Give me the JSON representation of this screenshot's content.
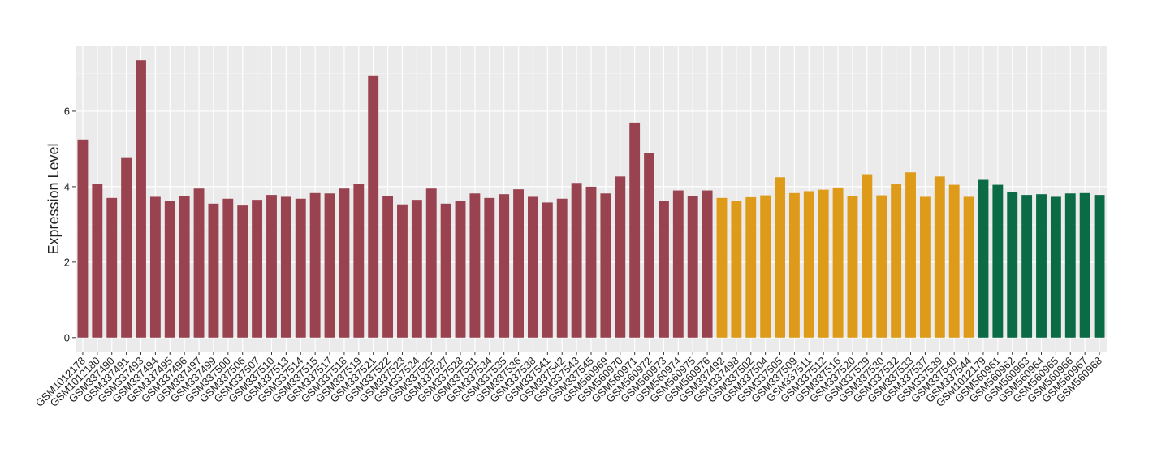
{
  "chart_data": {
    "type": "bar",
    "y_label": "Expression Level",
    "categories": [
      "GSM1012178",
      "GSM1012180",
      "GSM337490",
      "GSM337491",
      "GSM337493",
      "GSM337494",
      "GSM337495",
      "GSM337496",
      "GSM337497",
      "GSM337499",
      "GSM337500",
      "GSM337506",
      "GSM337507",
      "GSM337510",
      "GSM337513",
      "GSM337514",
      "GSM337515",
      "GSM337517",
      "GSM337518",
      "GSM337519",
      "GSM337521",
      "GSM337522",
      "GSM337523",
      "GSM337524",
      "GSM337525",
      "GSM337527",
      "GSM337528",
      "GSM337531",
      "GSM337534",
      "GSM337535",
      "GSM337536",
      "GSM337538",
      "GSM337541",
      "GSM337542",
      "GSM337543",
      "GSM337545",
      "GSM560969",
      "GSM560970",
      "GSM560971",
      "GSM560972",
      "GSM560973",
      "GSM560974",
      "GSM560975",
      "GSM560976",
      "GSM337492",
      "GSM337498",
      "GSM337502",
      "GSM337504",
      "GSM337505",
      "GSM337509",
      "GSM337511",
      "GSM337512",
      "GSM337516",
      "GSM337520",
      "GSM337529",
      "GSM337530",
      "GSM337532",
      "GSM337533",
      "GSM337537",
      "GSM337539",
      "GSM337540",
      "GSM337544",
      "GSM1012179",
      "GSM560961",
      "GSM560962",
      "GSM560963",
      "GSM560964",
      "GSM560965",
      "GSM560966",
      "GSM560967",
      "GSM560968"
    ],
    "values": [
      5.25,
      4.08,
      3.7,
      4.78,
      7.35,
      3.73,
      3.62,
      3.75,
      3.95,
      3.55,
      3.68,
      3.5,
      3.65,
      3.78,
      3.73,
      3.68,
      3.83,
      3.82,
      3.95,
      4.08,
      6.95,
      3.75,
      3.53,
      3.65,
      3.95,
      3.55,
      3.62,
      3.82,
      3.7,
      3.8,
      3.93,
      3.73,
      3.58,
      3.68,
      4.1,
      4.0,
      3.82,
      4.27,
      5.7,
      4.88,
      3.62,
      3.9,
      3.75,
      3.9,
      3.7,
      3.62,
      3.72,
      3.77,
      4.25,
      3.83,
      3.88,
      3.92,
      3.98,
      3.75,
      4.33,
      3.77,
      4.07,
      4.38,
      3.73,
      4.27,
      4.05,
      3.73,
      4.18,
      4.05,
      3.85,
      3.78,
      3.8,
      3.73,
      3.82,
      3.83,
      3.78
    ],
    "colors": [
      "#9a4350",
      "#9a4350",
      "#9a4350",
      "#9a4350",
      "#9a4350",
      "#9a4350",
      "#9a4350",
      "#9a4350",
      "#9a4350",
      "#9a4350",
      "#9a4350",
      "#9a4350",
      "#9a4350",
      "#9a4350",
      "#9a4350",
      "#9a4350",
      "#9a4350",
      "#9a4350",
      "#9a4350",
      "#9a4350",
      "#9a4350",
      "#9a4350",
      "#9a4350",
      "#9a4350",
      "#9a4350",
      "#9a4350",
      "#9a4350",
      "#9a4350",
      "#9a4350",
      "#9a4350",
      "#9a4350",
      "#9a4350",
      "#9a4350",
      "#9a4350",
      "#9a4350",
      "#9a4350",
      "#9a4350",
      "#9a4350",
      "#9a4350",
      "#9a4350",
      "#9a4350",
      "#9a4350",
      "#9a4350",
      "#9a4350",
      "#de9b1a",
      "#de9b1a",
      "#de9b1a",
      "#de9b1a",
      "#de9b1a",
      "#de9b1a",
      "#de9b1a",
      "#de9b1a",
      "#de9b1a",
      "#de9b1a",
      "#de9b1a",
      "#de9b1a",
      "#de9b1a",
      "#de9b1a",
      "#de9b1a",
      "#de9b1a",
      "#de9b1a",
      "#de9b1a",
      "#0a6b45",
      "#0a6b45",
      "#0a6b45",
      "#0a6b45",
      "#0a6b45",
      "#0a6b45",
      "#0a6b45",
      "#0a6b45",
      "#0a6b45"
    ],
    "ylim": [
      -0.37,
      7.72
    ],
    "yticks": [
      0,
      2,
      4,
      6
    ],
    "yminor": [
      1,
      3,
      5,
      7
    ],
    "grid": true
  }
}
